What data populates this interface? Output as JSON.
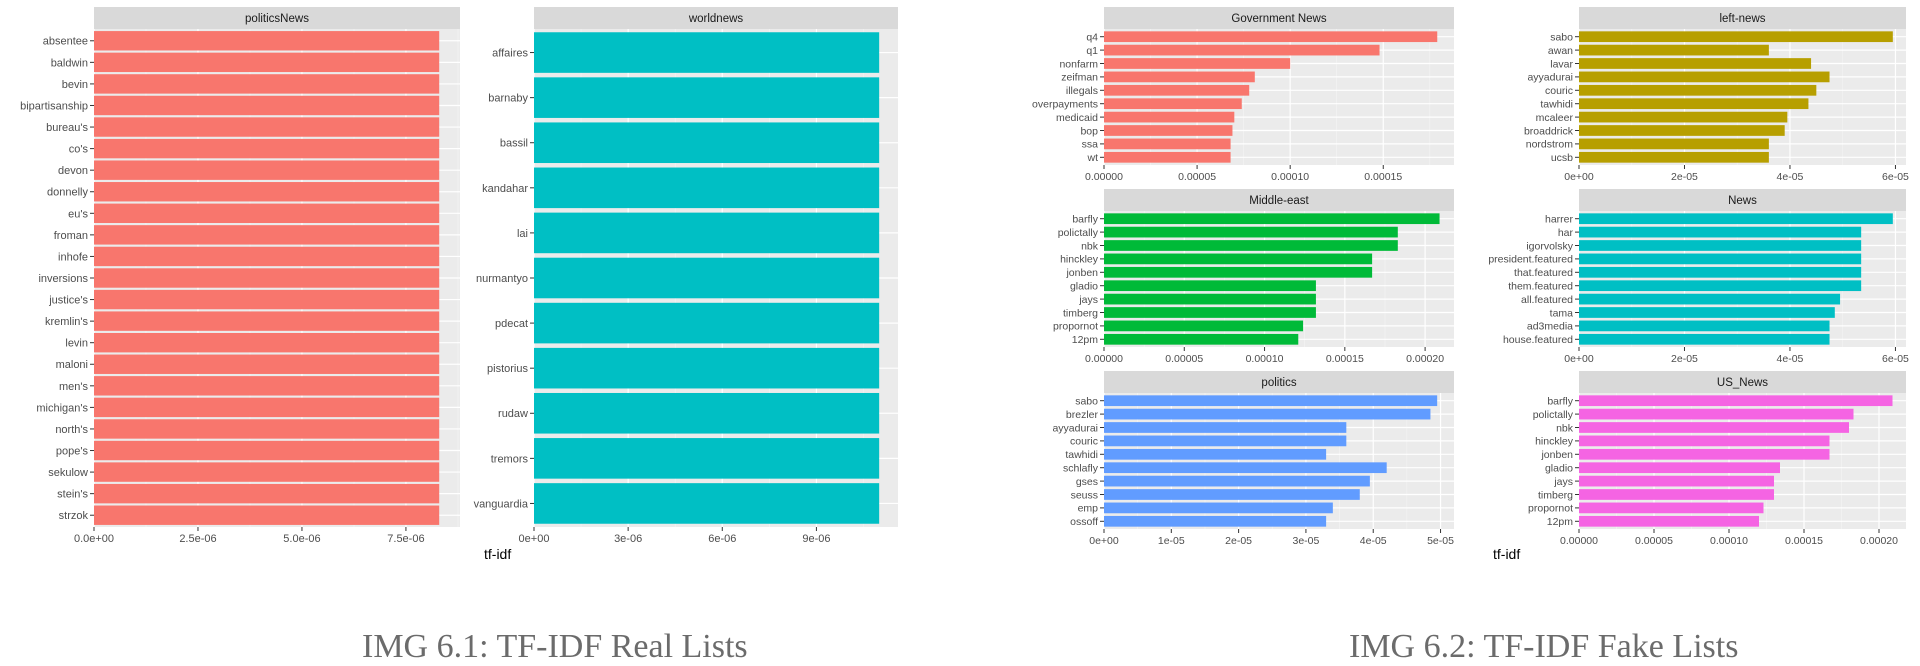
{
  "figure": {
    "left_axis_title": "tf-idf",
    "right_axis_title": "tf-idf",
    "caption_left": "IMG 6.1: TF-IDF Real Lists",
    "caption_right": "IMG 6.2: TF-IDF Fake Lists"
  },
  "chart_data": [
    {
      "type": "bar",
      "orientation": "horizontal",
      "title": "politicsNews",
      "xlabel": "tf-idf",
      "color": "#F8766D",
      "xlim": [
        0,
        8.8e-06
      ],
      "ticks": [
        0,
        2.5e-06,
        5e-06,
        7.5e-06
      ],
      "tick_labels": [
        "0.0e+00",
        "2.5e-06",
        "5.0e-06",
        "7.5e-06"
      ],
      "categories": [
        "absentee",
        "baldwin",
        "bevin",
        "bipartisanship",
        "bureau's",
        "co's",
        "devon",
        "donnelly",
        "eu's",
        "froman",
        "inhofe",
        "inversions",
        "justice's",
        "kremlin's",
        "levin",
        "maloni",
        "men's",
        "michigan's",
        "north's",
        "pope's",
        "sekulow",
        "stein's",
        "strzok"
      ],
      "values": [
        8.3e-06,
        8.3e-06,
        8.3e-06,
        8.3e-06,
        8.3e-06,
        8.3e-06,
        8.3e-06,
        8.3e-06,
        8.3e-06,
        8.3e-06,
        8.3e-06,
        8.3e-06,
        8.3e-06,
        8.3e-06,
        8.3e-06,
        8.3e-06,
        8.3e-06,
        8.3e-06,
        8.3e-06,
        8.3e-06,
        8.3e-06,
        8.3e-06,
        8.3e-06
      ]
    },
    {
      "type": "bar",
      "orientation": "horizontal",
      "title": "worldnews",
      "xlabel": "tf-idf",
      "color": "#00BFC4",
      "xlim": [
        0,
        1.16e-05
      ],
      "ticks": [
        0,
        3e-06,
        6e-06,
        9e-06
      ],
      "tick_labels": [
        "0e+00",
        "3e-06",
        "6e-06",
        "9e-06"
      ],
      "categories": [
        "affaires",
        "barnaby",
        "bassil",
        "kandahar",
        "lai",
        "nurmantyo",
        "pdecat",
        "pistorius",
        "rudaw",
        "tremors",
        "vanguardia"
      ],
      "values": [
        1.1e-05,
        1.1e-05,
        1.1e-05,
        1.1e-05,
        1.1e-05,
        1.1e-05,
        1.1e-05,
        1.1e-05,
        1.1e-05,
        1.1e-05,
        1.1e-05
      ]
    },
    {
      "type": "bar",
      "orientation": "horizontal",
      "title": "Government News",
      "xlabel": "tf-idf",
      "color": "#F8766D",
      "xlim": [
        0,
        0.000188
      ],
      "ticks": [
        0,
        5e-05,
        0.0001,
        0.00015
      ],
      "tick_labels": [
        "0.00000",
        "0.00005",
        "0.00010",
        "0.00015"
      ],
      "categories": [
        "q4",
        "q1",
        "nonfarm",
        "zeifman",
        "illegals",
        "overpayments",
        "medicaid",
        "bop",
        "ssa",
        "wt"
      ],
      "values": [
        0.000179,
        0.000148,
        0.0001,
        8.1e-05,
        7.8e-05,
        7.4e-05,
        7e-05,
        6.9e-05,
        6.8e-05,
        6.8e-05
      ]
    },
    {
      "type": "bar",
      "orientation": "horizontal",
      "title": "left-news",
      "xlabel": "tf-idf",
      "color": "#B79F00",
      "xlim": [
        0,
        6.2e-05
      ],
      "ticks": [
        0,
        2e-05,
        4e-05,
        6e-05
      ],
      "tick_labels": [
        "0e+00",
        "2e-05",
        "4e-05",
        "6e-05"
      ],
      "categories": [
        "sabo",
        "awan",
        "lavar",
        "ayyadurai",
        "couric",
        "tawhidi",
        "mcaleer",
        "broaddrick",
        "nordstrom",
        "ucsb"
      ],
      "values": [
        5.95e-05,
        3.6e-05,
        4.4e-05,
        4.75e-05,
        4.5e-05,
        4.35e-05,
        3.95e-05,
        3.9e-05,
        3.6e-05,
        3.6e-05
      ]
    },
    {
      "type": "bar",
      "orientation": "horizontal",
      "title": "Middle-east",
      "xlabel": "tf-idf",
      "color": "#00BA38",
      "xlim": [
        0,
        0.000218
      ],
      "ticks": [
        0,
        5e-05,
        0.0001,
        0.00015,
        0.0002
      ],
      "tick_labels": [
        "0.00000",
        "0.00005",
        "0.00010",
        "0.00015",
        "0.00020"
      ],
      "categories": [
        "barfly",
        "polictally",
        "nbk",
        "hinckley",
        "jonben",
        "gladio",
        "jays",
        "timberg",
        "propornot",
        "12pm"
      ],
      "values": [
        0.000209,
        0.000183,
        0.000183,
        0.000167,
        0.000167,
        0.000132,
        0.000132,
        0.000132,
        0.000124,
        0.000121
      ]
    },
    {
      "type": "bar",
      "orientation": "horizontal",
      "title": "News",
      "xlabel": "tf-idf",
      "color": "#00BFC4",
      "xlim": [
        0,
        6.2e-05
      ],
      "ticks": [
        0,
        2e-05,
        4e-05,
        6e-05
      ],
      "tick_labels": [
        "0e+00",
        "2e-05",
        "4e-05",
        "6e-05"
      ],
      "categories": [
        "harrer",
        "har",
        "igorvolsky",
        "president.featured",
        "that.featured",
        "them.featured",
        "all.featured",
        "tama",
        "ad3media",
        "house.featured"
      ],
      "values": [
        5.95e-05,
        5.35e-05,
        5.35e-05,
        5.35e-05,
        5.35e-05,
        5.35e-05,
        4.95e-05,
        4.85e-05,
        4.75e-05,
        4.75e-05
      ]
    },
    {
      "type": "bar",
      "orientation": "horizontal",
      "title": "politics",
      "xlabel": "tf-idf",
      "color": "#619CFF",
      "xlim": [
        0,
        5.2e-05
      ],
      "ticks": [
        0,
        1e-05,
        2e-05,
        3e-05,
        4e-05,
        5e-05
      ],
      "tick_labels": [
        "0e+00",
        "1e-05",
        "2e-05",
        "3e-05",
        "4e-05",
        "5e-05"
      ],
      "categories": [
        "sabo",
        "brezler",
        "ayyadurai",
        "couric",
        "tawhidi",
        "schlafly",
        "gses",
        "seuss",
        "emp",
        "ossoff"
      ],
      "values": [
        4.95e-05,
        4.85e-05,
        3.6e-05,
        3.6e-05,
        3.3e-05,
        4.2e-05,
        3.95e-05,
        3.8e-05,
        3.4e-05,
        3.3e-05
      ]
    },
    {
      "type": "bar",
      "orientation": "horizontal",
      "title": "US_News",
      "xlabel": "tf-idf",
      "color": "#F564E3",
      "xlim": [
        0,
        0.000218
      ],
      "ticks": [
        0,
        5e-05,
        0.0001,
        0.00015,
        0.0002
      ],
      "tick_labels": [
        "0.00000",
        "0.00005",
        "0.00010",
        "0.00015",
        "0.00020"
      ],
      "categories": [
        "barfly",
        "polictally",
        "nbk",
        "hinckley",
        "jonben",
        "gladio",
        "jays",
        "timberg",
        "propornot",
        "12pm"
      ],
      "values": [
        0.000209,
        0.000183,
        0.00018,
        0.000167,
        0.000167,
        0.000134,
        0.00013,
        0.00013,
        0.000123,
        0.00012
      ]
    }
  ]
}
